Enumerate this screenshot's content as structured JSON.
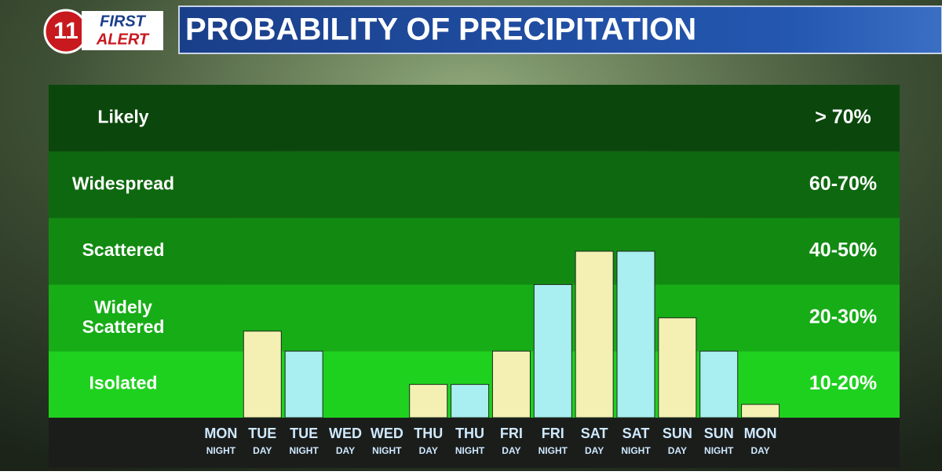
{
  "header": {
    "logo_number": "11",
    "logo_top": "FIRST",
    "logo_bottom": "ALERT"
  },
  "chart_data": {
    "type": "bar",
    "title": "PROBABILITY OF PRECIPITATION",
    "bands": [
      {
        "name": "Isolated",
        "label": "10-20%",
        "range": [
          10,
          20
        ],
        "color": "#1fd11f"
      },
      {
        "name": "Widely Scattered",
        "label": "20-30%",
        "range": [
          20,
          30
        ],
        "color": "#17ad17"
      },
      {
        "name": "Scattered",
        "label": "40-50%",
        "range": [
          40,
          50
        ],
        "color": "#128a12"
      },
      {
        "name": "Widespread",
        "label": "60-70%",
        "range": [
          60,
          70
        ],
        "color": "#0e680f"
      },
      {
        "name": "Likely",
        "label": "> 70%",
        "range": [
          70,
          100
        ],
        "color": "#0b470c"
      }
    ],
    "categories": [
      {
        "day": "MON",
        "period": "NIGHT"
      },
      {
        "day": "TUE",
        "period": "DAY"
      },
      {
        "day": "TUE",
        "period": "NIGHT"
      },
      {
        "day": "WED",
        "period": "DAY"
      },
      {
        "day": "WED",
        "period": "NIGHT"
      },
      {
        "day": "THU",
        "period": "DAY"
      },
      {
        "day": "THU",
        "period": "NIGHT"
      },
      {
        "day": "FRI",
        "period": "DAY"
      },
      {
        "day": "FRI",
        "period": "NIGHT"
      },
      {
        "day": "SAT",
        "period": "DAY"
      },
      {
        "day": "SAT",
        "period": "NIGHT"
      },
      {
        "day": "SUN",
        "period": "DAY"
      },
      {
        "day": "SUN",
        "period": "NIGHT"
      },
      {
        "day": "MON",
        "period": "DAY"
      }
    ],
    "values": [
      null,
      23,
      20,
      null,
      null,
      15,
      15,
      20,
      30,
      45,
      45,
      25,
      20,
      12
    ],
    "bar_colors": [
      "#a9eef0",
      "#f4f0b4",
      "#a9eef0",
      "#f4f0b4",
      "#a9eef0",
      "#f4f0b4",
      "#a9eef0",
      "#f4f0b4",
      "#a9eef0",
      "#f4f0b4",
      "#a9eef0",
      "#f4f0b4",
      "#a9eef0",
      "#f4f0b4"
    ]
  }
}
